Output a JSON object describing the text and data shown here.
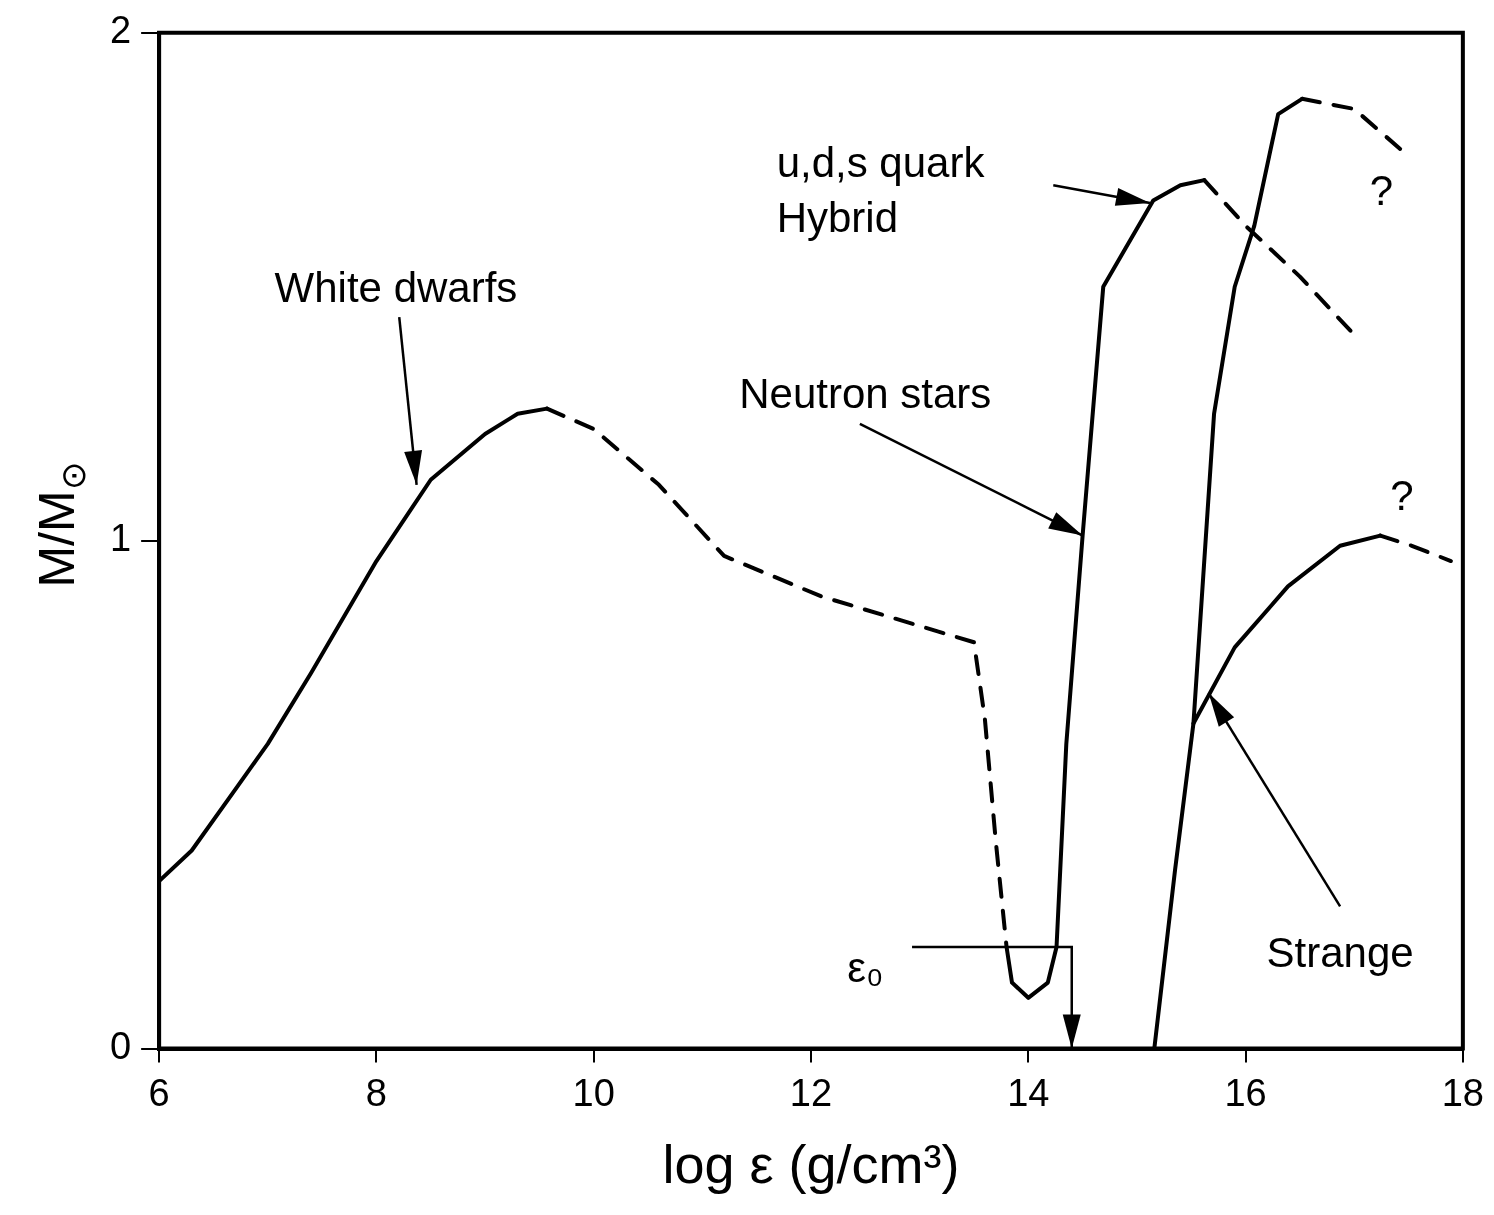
{
  "chart_data": {
    "type": "line",
    "xlabel": "log ε (g/cm³)",
    "ylabel": "M/M$_{⊙}$",
    "xlim": [
      6,
      18
    ],
    "xticks": [
      6,
      8,
      10,
      12,
      14,
      16,
      18
    ],
    "ylim": [
      0,
      2
    ],
    "yticks": [
      0,
      1,
      2
    ],
    "grid": false,
    "marker": "none",
    "series": [
      {
        "color": "#000000",
        "line_style": "solid",
        "x": [
          6,
          6.3,
          6.7,
          7.0,
          7.4,
          8.0,
          8.5,
          9.0,
          9.3,
          9.57
        ],
        "values": [
          0.33,
          0.39,
          0.51,
          0.6,
          0.74,
          0.96,
          1.12,
          1.21,
          1.25,
          1.26
        ]
      },
      {
        "color": "#000000",
        "line_style": "dashed",
        "x": [
          9.57,
          10.0,
          10.6,
          11.2,
          12.1,
          13.5,
          13.6,
          13.7,
          13.8
        ],
        "values": [
          1.26,
          1.22,
          1.11,
          0.97,
          0.89,
          0.8,
          0.65,
          0.41,
          0.2
        ]
      },
      {
        "color": "#000000",
        "line_style": "solid",
        "x": [
          13.8,
          13.85,
          14.0,
          14.18,
          14.26,
          14.35,
          14.5,
          14.69,
          15.15,
          15.4,
          15.62
        ],
        "values": [
          0.2,
          0.13,
          0.1,
          0.13,
          0.2,
          0.6,
          1.01,
          1.5,
          1.67,
          1.7,
          1.71
        ]
      },
      {
        "color": "#000000",
        "line_style": "dashed",
        "x": [
          15.62,
          16.0,
          16.5,
          16.98
        ],
        "values": [
          1.71,
          1.62,
          1.52,
          1.41
        ]
      },
      {
        "color": "#000000",
        "line_style": "solid",
        "x": [
          15.16,
          15.35,
          15.52,
          15.71,
          15.9,
          16.08,
          16.3,
          16.52
        ],
        "values": [
          0,
          0.35,
          0.64,
          1.25,
          1.5,
          1.62,
          1.84,
          1.87
        ]
      },
      {
        "color": "#000000",
        "line_style": "dashed",
        "x": [
          16.52,
          17.0,
          17.43
        ],
        "values": [
          1.87,
          1.85,
          1.77
        ]
      },
      {
        "color": "#000000",
        "line_style": "solid",
        "x": [
          15.52,
          15.9,
          16.39,
          16.87,
          17.24
        ],
        "values": [
          0.64,
          0.79,
          0.91,
          0.99,
          1.01
        ]
      },
      {
        "color": "#000000",
        "line_style": "dashed",
        "x": [
          17.24,
          17.53,
          17.89
        ],
        "values": [
          1.01,
          0.99,
          0.96
        ]
      }
    ],
    "annotations": [
      "White dwarfs",
      {
        "text": "Neutron stars",
        "x": 14.5,
        "y": 1.01
      },
      "u,d,s quark\nHybrid",
      {
        "text": "Strange",
        "x": 15.66,
        "y": 0.7
      },
      "?",
      "?",
      "ε₀"
    ]
  }
}
